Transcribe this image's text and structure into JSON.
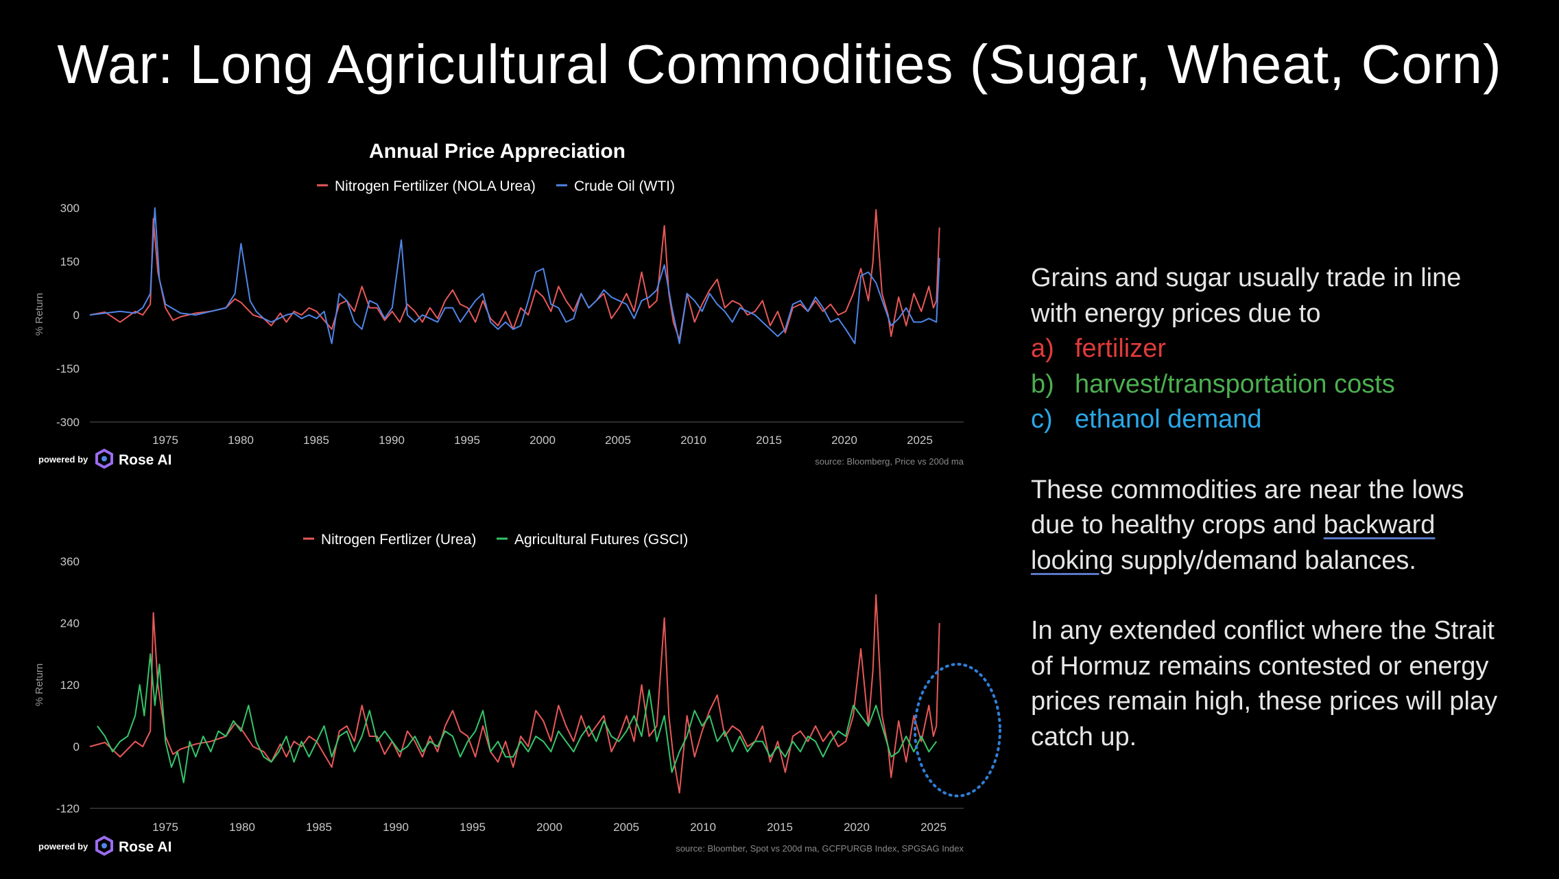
{
  "slide": {
    "title": "War: Long Agricultural Commodities (Sugar, Wheat, Corn)"
  },
  "colors": {
    "fertilizer": "#e85858",
    "oil": "#4f86e8",
    "ag": "#35c46a",
    "harvest": "#4caf50",
    "ethanol": "#29a8e8",
    "background": "#000000"
  },
  "branding": {
    "powered_by": "powered by",
    "brand": "Rose AI",
    "logo_icon": "rose-ai-hexagon-icon"
  },
  "side_text": {
    "p1_line1": "Grains and sugar usually trade in line",
    "p1_line2": "with energy prices due to",
    "items": [
      {
        "letter": "a)",
        "text": "fertilizer"
      },
      {
        "letter": "b)",
        "text": "harvest/transportation costs"
      },
      {
        "letter": "c)",
        "text": "ethanol demand"
      }
    ],
    "p2_line1": "These commodities are near the lows",
    "p2_line2_pre": "due to healthy crops and ",
    "p2_underline_1": "backward",
    "p2_underline_2": "looking",
    "p2_line3_post": " supply/demand balances.",
    "p3_line1": "In any extended conflict where the Strait",
    "p3_line2": "of Hormuz remains contested or energy",
    "p3_line3": "prices remain high, these prices will play",
    "p3_line4": "catch up."
  },
  "chart_data": [
    {
      "type": "line",
      "title": "Annual Price Appreciation",
      "ylabel": "% Return",
      "xlabel": "",
      "ylim": [
        -300,
        300
      ],
      "xlim": [
        1970,
        2027.8
      ],
      "yticks": [
        "300",
        "150",
        "0",
        "-150",
        "-300"
      ],
      "xticks": [
        "1975",
        "1980",
        "1985",
        "1990",
        "1995",
        "2000",
        "2005",
        "2010",
        "2015",
        "2020",
        "2025"
      ],
      "source": "source: Bloomberg, Price vs 200d ma",
      "series": [
        {
          "name": "Nitrogen Fertilizer (NOLA Urea)",
          "x": [
            1970.0,
            1971.0,
            1972.0,
            1973.0,
            1973.5,
            1974.0,
            1974.2,
            1974.5,
            1975.0,
            1975.5,
            1976.0,
            1977.0,
            1978.0,
            1979.0,
            1979.6,
            1980.0,
            1980.8,
            1981.5,
            1982.0,
            1982.6,
            1983.0,
            1983.5,
            1984.0,
            1984.5,
            1985.0,
            1985.5,
            1986.0,
            1986.5,
            1987.0,
            1987.5,
            1988.0,
            1988.5,
            1989.0,
            1989.5,
            1990.0,
            1990.5,
            1991.0,
            1991.5,
            1992.0,
            1992.5,
            1993.0,
            1993.5,
            1994.0,
            1994.5,
            1995.0,
            1995.5,
            1996.0,
            1996.5,
            1997.0,
            1997.5,
            1998.0,
            1998.5,
            1999.0,
            1999.5,
            2000.0,
            2000.5,
            2001.0,
            2001.5,
            2002.0,
            2002.5,
            2003.0,
            2003.5,
            2004.0,
            2004.5,
            2005.0,
            2005.5,
            2006.0,
            2006.5,
            2007.0,
            2007.5,
            2008.0,
            2008.3,
            2008.6,
            2009.0,
            2009.5,
            2010.0,
            2010.5,
            2011.0,
            2011.5,
            2012.0,
            2012.5,
            2013.0,
            2013.5,
            2014.0,
            2014.5,
            2015.0,
            2015.5,
            2016.0,
            2016.5,
            2017.0,
            2017.5,
            2018.0,
            2018.5,
            2019.0,
            2019.5,
            2020.0,
            2020.5,
            2021.0,
            2021.5,
            2021.8,
            2022.0,
            2022.4,
            2022.8,
            2023.0,
            2023.5,
            2024.0,
            2024.5,
            2025.0,
            2025.5,
            2025.8,
            2026.0,
            2026.2
          ],
          "values": [
            0,
            8,
            -20,
            10,
            0,
            30,
            270,
            120,
            20,
            -15,
            -5,
            5,
            10,
            20,
            45,
            35,
            0,
            -10,
            -30,
            5,
            -20,
            10,
            0,
            20,
            10,
            -15,
            -40,
            30,
            40,
            10,
            80,
            20,
            20,
            -15,
            10,
            -20,
            30,
            10,
            -20,
            20,
            -10,
            40,
            70,
            30,
            20,
            -20,
            40,
            -10,
            -30,
            10,
            -40,
            20,
            0,
            70,
            50,
            10,
            80,
            40,
            10,
            60,
            20,
            40,
            60,
            -10,
            20,
            60,
            10,
            120,
            20,
            40,
            250,
            60,
            -20,
            -70,
            60,
            -20,
            30,
            70,
            100,
            20,
            40,
            30,
            0,
            10,
            40,
            -30,
            10,
            -50,
            20,
            30,
            10,
            40,
            10,
            30,
            0,
            10,
            60,
            130,
            40,
            150,
            295,
            60,
            0,
            -60,
            50,
            -30,
            60,
            10,
            80,
            20,
            40,
            245
          ]
        },
        {
          "name": "Crude Oil (WTI)",
          "x": [
            1970.0,
            1971.0,
            1972.0,
            1973.0,
            1973.5,
            1974.0,
            1974.3,
            1974.6,
            1975.0,
            1976.0,
            1977.0,
            1978.0,
            1979.0,
            1979.6,
            1980.0,
            1980.6,
            1981.0,
            1981.5,
            1982.0,
            1982.5,
            1983.0,
            1983.5,
            1984.0,
            1984.5,
            1985.0,
            1985.5,
            1986.0,
            1986.5,
            1987.0,
            1987.5,
            1988.0,
            1988.5,
            1989.0,
            1989.5,
            1990.0,
            1990.6,
            1991.0,
            1991.5,
            1992.0,
            1992.5,
            1993.0,
            1993.5,
            1994.0,
            1994.5,
            1995.0,
            1995.5,
            1996.0,
            1996.5,
            1997.0,
            1997.5,
            1998.0,
            1998.5,
            1999.0,
            1999.5,
            2000.0,
            2000.5,
            2001.0,
            2001.5,
            2002.0,
            2002.5,
            2003.0,
            2003.5,
            2004.0,
            2004.5,
            2005.0,
            2005.5,
            2006.0,
            2006.5,
            2007.0,
            2007.5,
            2008.0,
            2008.5,
            2009.0,
            2009.5,
            2010.0,
            2010.5,
            2011.0,
            2011.5,
            2012.0,
            2012.5,
            2013.0,
            2013.5,
            2014.0,
            2014.5,
            2015.0,
            2015.5,
            2016.0,
            2016.5,
            2017.0,
            2017.5,
            2018.0,
            2018.5,
            2019.0,
            2019.5,
            2020.0,
            2020.3,
            2020.6,
            2021.0,
            2021.5,
            2022.0,
            2022.5,
            2023.0,
            2023.5,
            2024.0,
            2024.5,
            2025.0,
            2025.5,
            2026.0,
            2026.2
          ],
          "values": [
            0,
            5,
            10,
            5,
            20,
            60,
            300,
            100,
            30,
            5,
            0,
            10,
            20,
            60,
            200,
            40,
            10,
            -10,
            -20,
            -10,
            0,
            5,
            -10,
            0,
            -10,
            10,
            -80,
            60,
            40,
            -20,
            -40,
            40,
            30,
            -10,
            20,
            210,
            0,
            -20,
            0,
            -10,
            -20,
            20,
            20,
            -20,
            10,
            40,
            60,
            -20,
            -40,
            -20,
            -40,
            -30,
            40,
            120,
            130,
            30,
            20,
            -20,
            -10,
            60,
            20,
            40,
            70,
            50,
            40,
            30,
            -10,
            40,
            50,
            70,
            140,
            20,
            -80,
            60,
            40,
            10,
            60,
            30,
            10,
            -20,
            20,
            10,
            0,
            -20,
            -40,
            -60,
            -40,
            30,
            40,
            10,
            50,
            20,
            -20,
            -10,
            -40,
            -60,
            -80,
            110,
            120,
            90,
            30,
            -30,
            -10,
            20,
            -20,
            -20,
            -10,
            -20,
            160
          ]
        }
      ]
    },
    {
      "type": "line",
      "title": "",
      "ylabel": "% Return",
      "xlabel": "",
      "ylim": [
        -120,
        360
      ],
      "xlim": [
        1970,
        2027.8
      ],
      "yticks": [
        "360",
        "240",
        "120",
        "0",
        "-120"
      ],
      "xticks": [
        "1975",
        "1980",
        "1985",
        "1990",
        "1995",
        "2000",
        "2005",
        "2010",
        "2015",
        "2020",
        "2025"
      ],
      "source": "source: Bloomber, Spot vs 200d ma, GCFPURGB Index, SPGSAG Index",
      "series": [
        {
          "name": "Nitrogen Fertlizer (Urea)",
          "x": [
            1970.0,
            1971.0,
            1972.0,
            1973.0,
            1973.5,
            1974.0,
            1974.2,
            1974.5,
            1975.0,
            1975.5,
            1976.0,
            1977.0,
            1978.0,
            1979.0,
            1979.6,
            1980.0,
            1980.8,
            1981.5,
            1982.0,
            1982.6,
            1983.0,
            1983.5,
            1984.0,
            1984.5,
            1985.0,
            1985.5,
            1986.0,
            1986.5,
            1987.0,
            1987.5,
            1988.0,
            1988.5,
            1989.0,
            1989.5,
            1990.0,
            1990.5,
            1991.0,
            1991.5,
            1992.0,
            1992.5,
            1993.0,
            1993.5,
            1994.0,
            1994.5,
            1995.0,
            1995.5,
            1996.0,
            1996.5,
            1997.0,
            1997.5,
            1998.0,
            1998.5,
            1999.0,
            1999.5,
            2000.0,
            2000.5,
            2001.0,
            2001.5,
            2002.0,
            2002.5,
            2003.0,
            2003.5,
            2004.0,
            2004.5,
            2005.0,
            2005.5,
            2006.0,
            2006.5,
            2007.0,
            2007.5,
            2008.0,
            2008.3,
            2008.6,
            2009.0,
            2009.5,
            2010.0,
            2010.5,
            2011.0,
            2011.5,
            2012.0,
            2012.5,
            2013.0,
            2013.5,
            2014.0,
            2014.5,
            2015.0,
            2015.5,
            2016.0,
            2016.5,
            2017.0,
            2017.5,
            2018.0,
            2018.5,
            2019.0,
            2019.5,
            2020.0,
            2020.5,
            2021.0,
            2021.5,
            2021.8,
            2022.0,
            2022.4,
            2022.8,
            2023.0,
            2023.5,
            2024.0,
            2024.5,
            2025.0,
            2025.5,
            2025.8,
            2026.0,
            2026.2
          ],
          "values": [
            0,
            8,
            -20,
            10,
            0,
            30,
            260,
            120,
            20,
            -15,
            -5,
            5,
            10,
            20,
            45,
            35,
            0,
            -10,
            -30,
            5,
            -20,
            10,
            0,
            20,
            10,
            -15,
            -40,
            30,
            40,
            10,
            80,
            20,
            20,
            -15,
            10,
            -20,
            30,
            10,
            -20,
            20,
            -10,
            40,
            70,
            30,
            20,
            -20,
            40,
            -10,
            -30,
            10,
            -40,
            20,
            0,
            70,
            50,
            10,
            80,
            40,
            10,
            60,
            20,
            40,
            60,
            -10,
            20,
            60,
            10,
            120,
            20,
            40,
            250,
            60,
            -20,
            -90,
            60,
            -20,
            30,
            70,
            100,
            20,
            40,
            30,
            0,
            10,
            40,
            -30,
            10,
            -50,
            20,
            30,
            10,
            40,
            10,
            30,
            0,
            10,
            60,
            190,
            40,
            150,
            295,
            60,
            0,
            -60,
            50,
            -30,
            60,
            10,
            80,
            20,
            40,
            240
          ]
        },
        {
          "name": "Agricultural Futures (GSCI)",
          "x": [
            1970.5,
            1971.0,
            1971.5,
            1972.0,
            1972.5,
            1973.0,
            1973.3,
            1973.6,
            1974.0,
            1974.3,
            1974.6,
            1975.0,
            1975.4,
            1975.8,
            1976.2,
            1976.6,
            1977.0,
            1977.5,
            1978.0,
            1978.5,
            1979.0,
            1979.5,
            1980.0,
            1980.5,
            1981.0,
            1981.5,
            1982.0,
            1982.5,
            1983.0,
            1983.5,
            1984.0,
            1984.5,
            1985.0,
            1985.5,
            1986.0,
            1986.5,
            1987.0,
            1987.5,
            1988.0,
            1988.5,
            1989.0,
            1989.5,
            1990.0,
            1990.5,
            1991.0,
            1991.5,
            1992.0,
            1992.5,
            1993.0,
            1993.5,
            1994.0,
            1994.5,
            1995.0,
            1995.5,
            1996.0,
            1996.5,
            1997.0,
            1997.5,
            1998.0,
            1998.5,
            1999.0,
            1999.5,
            2000.0,
            2000.5,
            2001.0,
            2001.5,
            2002.0,
            2002.5,
            2003.0,
            2003.5,
            2004.0,
            2004.5,
            2005.0,
            2005.5,
            2006.0,
            2006.5,
            2007.0,
            2007.5,
            2008.0,
            2008.5,
            2009.0,
            2009.5,
            2010.0,
            2010.5,
            2011.0,
            2011.5,
            2012.0,
            2012.5,
            2013.0,
            2013.5,
            2014.0,
            2014.5,
            2015.0,
            2015.5,
            2016.0,
            2016.5,
            2017.0,
            2017.5,
            2018.0,
            2018.5,
            2019.0,
            2019.5,
            2020.0,
            2020.5,
            2021.0,
            2021.5,
            2022.0,
            2022.5,
            2023.0,
            2023.5,
            2024.0,
            2024.5,
            2025.0,
            2025.5,
            2026.0
          ],
          "values": [
            40,
            20,
            -10,
            10,
            20,
            60,
            120,
            60,
            180,
            80,
            160,
            10,
            -40,
            -10,
            -70,
            10,
            -20,
            20,
            -10,
            30,
            20,
            50,
            30,
            80,
            10,
            -20,
            -30,
            -10,
            20,
            -30,
            10,
            -20,
            10,
            40,
            -20,
            20,
            30,
            -10,
            20,
            70,
            10,
            30,
            10,
            -10,
            0,
            20,
            -10,
            10,
            0,
            30,
            20,
            -20,
            10,
            30,
            70,
            -10,
            10,
            -20,
            -20,
            10,
            -10,
            20,
            10,
            -10,
            30,
            10,
            -10,
            20,
            40,
            10,
            50,
            20,
            10,
            30,
            60,
            20,
            110,
            10,
            60,
            -50,
            -10,
            20,
            70,
            40,
            60,
            10,
            30,
            -10,
            20,
            -10,
            10,
            10,
            -20,
            0,
            -20,
            10,
            -10,
            20,
            10,
            -20,
            10,
            30,
            20,
            80,
            60,
            40,
            80,
            30,
            -20,
            -10,
            20,
            -10,
            20,
            -10,
            10
          ]
        }
      ]
    }
  ]
}
